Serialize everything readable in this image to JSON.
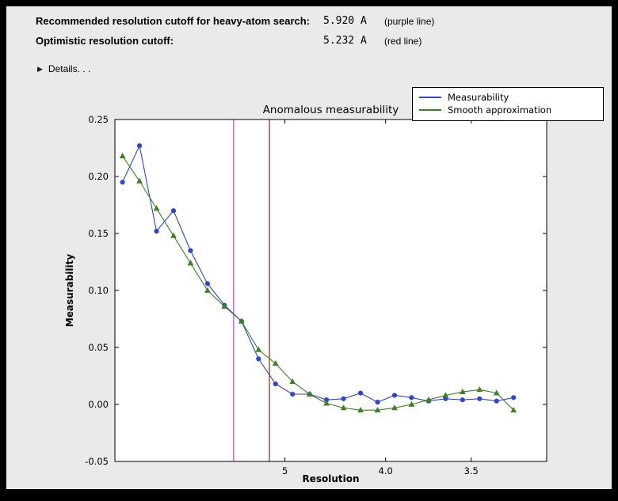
{
  "header": {
    "row1_label": "Recommended resolution cutoff for heavy-atom search:",
    "row1_value": "5.920 A",
    "row1_note": "(purple line)",
    "row2_label": "Optimistic resolution cutoff:",
    "row2_value": "5.232 A",
    "row2_note": "(red line)",
    "details_label": "Details. . .",
    "details_triangle": "▶"
  },
  "chart_data": {
    "type": "line",
    "title": "Anomalous measurability",
    "xlabel": "Resolution",
    "ylabel": "Measurability",
    "ylim": [
      -0.05,
      0.25
    ],
    "yticks": [
      0.25,
      0.2,
      0.15,
      0.1,
      0.05,
      0.0,
      -0.05
    ],
    "ytick_labels": [
      "0.25",
      "0.20",
      "0.15",
      "0.10",
      "0.05",
      "0.00",
      "-0.05"
    ],
    "x_axis_note": "resolution axis, linear in 1/d^2, values in Angstrom decreasing to the right",
    "x_range_inv_d2": [
      0.002,
      0.0985
    ],
    "xticks": [
      {
        "label": "5",
        "inv_d2": 0.04
      },
      {
        "label": "4.0",
        "inv_d2": 0.0625
      },
      {
        "label": "3.5",
        "inv_d2": 0.081633
      }
    ],
    "x_inv_d2": [
      0.0037,
      0.0075,
      0.0113,
      0.0151,
      0.0189,
      0.0227,
      0.0265,
      0.0303,
      0.0341,
      0.0379,
      0.0417,
      0.0455,
      0.0493,
      0.0531,
      0.0569,
      0.0607,
      0.0645,
      0.0683,
      0.0721,
      0.0759,
      0.0797,
      0.0835,
      0.0873,
      0.0911
    ],
    "series": [
      {
        "name": "Measurability",
        "color": "#3344cc",
        "marker": "circle",
        "values": [
          0.195,
          0.227,
          0.152,
          0.17,
          0.135,
          0.106,
          0.087,
          0.073,
          0.04,
          0.018,
          0.009,
          0.009,
          0.004,
          0.005,
          0.01,
          0.002,
          0.008,
          0.006,
          0.003,
          0.005,
          0.004,
          0.005,
          0.003,
          0.006
        ]
      },
      {
        "name": "Smooth approximation",
        "color": "#3f8024",
        "marker": "triangle",
        "values": [
          0.218,
          0.196,
          0.172,
          0.148,
          0.124,
          0.1,
          0.086,
          0.073,
          0.048,
          0.036,
          0.02,
          0.009,
          0.001,
          -0.003,
          -0.005,
          -0.005,
          -0.003,
          0.0,
          0.004,
          0.008,
          0.011,
          0.013,
          0.01,
          -0.005
        ]
      }
    ],
    "vlines": [
      {
        "name": "purple line",
        "color": "#c353c3",
        "resolution_A": 5.92,
        "inv_d2": 0.02853
      },
      {
        "name": "red line",
        "color": "#8e3b1e",
        "resolution_A": 5.232,
        "inv_d2": 0.03654
      }
    ],
    "legend": {
      "position": "upper right"
    },
    "colors": {
      "plot_background": "#ffffff",
      "panel_background": "#eaeaea",
      "axis": "#000000"
    }
  }
}
